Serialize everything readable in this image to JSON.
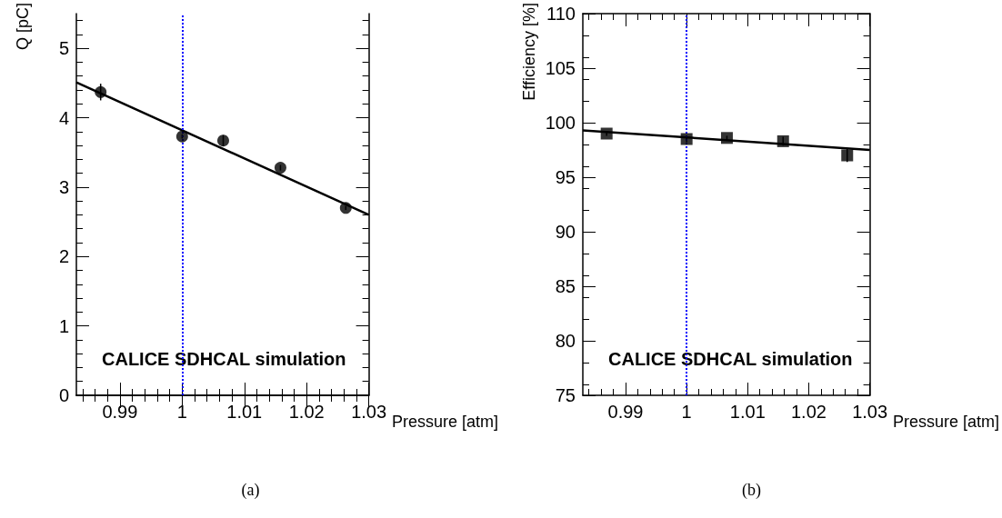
{
  "chart_data": [
    {
      "type": "scatter",
      "xlabel": "Pressure [atm]",
      "ylabel": "Q [pC]",
      "xlim": [
        0.983,
        1.03
      ],
      "xticks": [
        0.99,
        1,
        1.01,
        1.02,
        1.03
      ],
      "ylim": [
        0,
        5.5
      ],
      "yticks": [
        0,
        1,
        2,
        3,
        4,
        5
      ],
      "grid": false,
      "series": [
        {
          "color": "#000000",
          "marker": "circle",
          "x": [
            0.9869,
            1.0,
            1.0066,
            1.0158,
            1.0263
          ],
          "values": [
            4.37,
            3.73,
            3.67,
            3.28,
            2.7
          ],
          "errors": [
            0.12,
            0.03,
            0.08,
            0.04,
            0.03
          ]
        },
        {
          "type": "line",
          "color": "#000000",
          "marker": "none",
          "line_style": "solid",
          "x": [
            0.983,
            1.03
          ],
          "values": [
            4.51,
            2.6
          ]
        }
      ],
      "ref_lines": [
        {
          "axis": "x",
          "value": 1,
          "label": null,
          "color": "#0000ff",
          "line_style": "dotted"
        }
      ],
      "annotations": [
        "CALICE SDHCAL simulation",
        "(a)"
      ]
    },
    {
      "type": "scatter",
      "xlabel": "Pressure [atm]",
      "ylabel": "Efficiency [%]",
      "xlim": [
        0.983,
        1.03
      ],
      "xticks": [
        0.99,
        1,
        1.01,
        1.02,
        1.03
      ],
      "ylim": [
        75,
        110
      ],
      "yticks": [
        75,
        80,
        85,
        90,
        95,
        100,
        105,
        110
      ],
      "grid": false,
      "series": [
        {
          "color": "#000000",
          "marker": "square",
          "x": [
            0.9869,
            1.0,
            1.0066,
            1.0158,
            1.0263
          ],
          "values": [
            99.0,
            98.5,
            98.6,
            98.3,
            97.0
          ],
          "errors": [
            0.2,
            0.3,
            0.2,
            0.4,
            0.6
          ]
        },
        {
          "type": "line",
          "color": "#000000",
          "marker": "none",
          "line_style": "solid",
          "x": [
            0.983,
            1.03
          ],
          "values": [
            99.3,
            97.5
          ]
        }
      ],
      "ref_lines": [
        {
          "axis": "x",
          "value": 1,
          "label": null,
          "color": "#0000ff",
          "line_style": "dotted"
        }
      ],
      "annotations": [
        "CALICE SDHCAL simulation",
        "(b)"
      ]
    }
  ]
}
